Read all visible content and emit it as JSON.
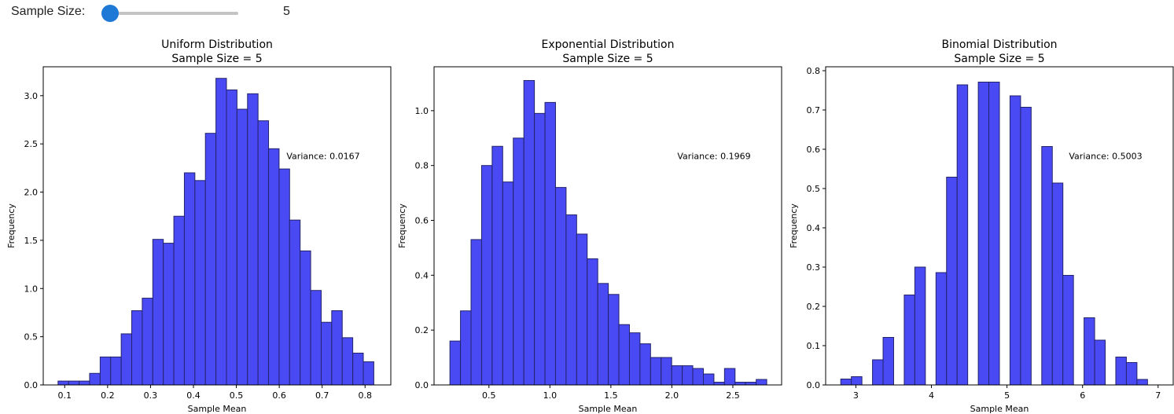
{
  "controls": {
    "sample_size_label": "Sample Size:",
    "sample_size_value": "5",
    "slider_min": 1,
    "slider_max": 100,
    "slider_current": 5
  },
  "colors": {
    "bar_fill": "#4a4af5",
    "bar_edge": "#23236a",
    "slider_accent": "#1e78d6"
  },
  "chart_data": [
    {
      "type": "bar",
      "title": "Uniform Distribution",
      "subtitle": "Sample Size = 5",
      "xlabel": "Sample Mean",
      "ylabel": "Frequency",
      "annotation": "Variance: 0.0167",
      "xlim": [
        0.05,
        0.86
      ],
      "ylim": [
        0,
        3.3
      ],
      "xticks": [
        0.1,
        0.2,
        0.3,
        0.4,
        0.5,
        0.6,
        0.7,
        0.8
      ],
      "xtick_labels": [
        "0.1",
        "0.2",
        "0.3",
        "0.4",
        "0.5",
        "0.6",
        "0.7",
        "0.8"
      ],
      "yticks": [
        0,
        0.5,
        1.0,
        1.5,
        2.0,
        2.5,
        3.0
      ],
      "ytick_labels": [
        "0.0",
        "0.5",
        "1.0",
        "1.5",
        "2.0",
        "2.5",
        "3.0"
      ],
      "bin_start": 0.0845,
      "bin_width": 0.02453,
      "values": [
        0.04,
        0.04,
        0.04,
        0.12,
        0.29,
        0.29,
        0.53,
        0.77,
        0.9,
        1.51,
        1.47,
        1.75,
        2.2,
        2.12,
        2.61,
        3.18,
        3.06,
        2.86,
        3.02,
        2.74,
        2.45,
        2.24,
        1.71,
        1.39,
        0.98,
        0.65,
        0.77,
        0.49,
        0.33,
        0.24
      ]
    },
    {
      "type": "bar",
      "title": "Exponential Distribution",
      "subtitle": "Sample Size = 5",
      "xlabel": "Sample Mean",
      "ylabel": "Frequency",
      "annotation": "Variance: 0.1969",
      "xlim": [
        0.05,
        2.9
      ],
      "ylim": [
        0,
        1.16
      ],
      "xticks": [
        0.5,
        1.0,
        1.5,
        2.0,
        2.5
      ],
      "xtick_labels": [
        "0.5",
        "1.0",
        "1.5",
        "2.0",
        "2.5"
      ],
      "yticks": [
        0,
        0.2,
        0.4,
        0.6,
        0.8,
        1.0
      ],
      "ytick_labels": [
        "0.0",
        "0.2",
        "0.4",
        "0.6",
        "0.8",
        "1.0"
      ],
      "bin_start": 0.18,
      "bin_width": 0.0866,
      "values": [
        0.16,
        0.27,
        0.53,
        0.8,
        0.87,
        0.74,
        0.9,
        1.11,
        0.99,
        1.03,
        0.72,
        0.62,
        0.55,
        0.46,
        0.37,
        0.33,
        0.22,
        0.19,
        0.15,
        0.1,
        0.1,
        0.07,
        0.07,
        0.06,
        0.04,
        0.01,
        0.06,
        0.01,
        0.01,
        0.02
      ]
    },
    {
      "type": "bar",
      "title": "Binomial Distribution",
      "subtitle": "Sample Size = 5",
      "xlabel": "Sample Mean",
      "ylabel": "Frequency",
      "annotation": "Variance: 0.5003",
      "xlim": [
        2.6,
        7.2
      ],
      "ylim": [
        0,
        0.81
      ],
      "xticks": [
        3,
        4,
        5,
        6,
        7
      ],
      "xtick_labels": [
        "3",
        "4",
        "5",
        "6",
        "7"
      ],
      "yticks": [
        0,
        0.1,
        0.2,
        0.3,
        0.4,
        0.5,
        0.6,
        0.7,
        0.8
      ],
      "ytick_labels": [
        "0.0",
        "0.1",
        "0.2",
        "0.3",
        "0.4",
        "0.5",
        "0.6",
        "0.7",
        "0.8"
      ],
      "bin_start": 2.8,
      "bin_width": 0.14,
      "values": [
        0.015,
        0.021,
        0,
        0.064,
        0.121,
        0,
        0.229,
        0.3,
        0,
        0.286,
        0.529,
        0.764,
        0,
        0.771,
        0.771,
        0,
        0.736,
        0.707,
        0,
        0.607,
        0.514,
        0.279,
        0,
        0.171,
        0.114,
        0,
        0.071,
        0.057,
        0.014,
        0
      ]
    }
  ]
}
